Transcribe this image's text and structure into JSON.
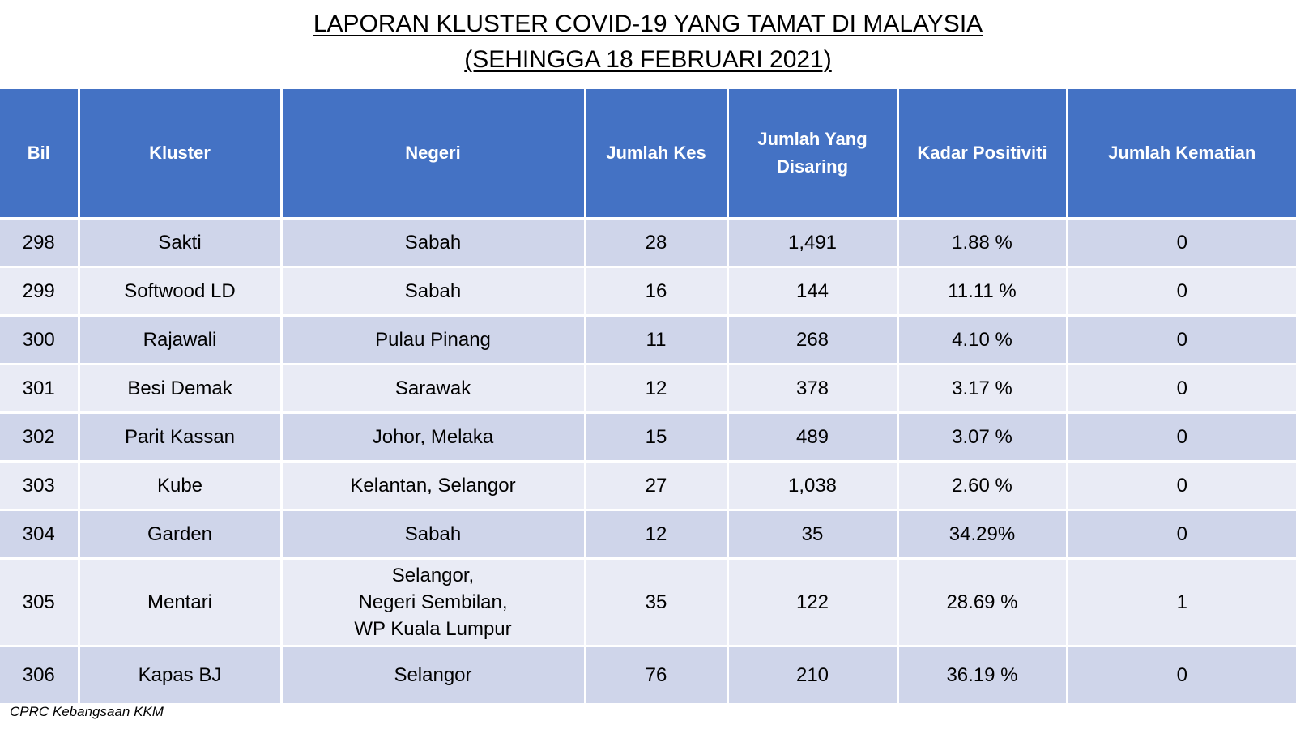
{
  "title": {
    "line1": "LAPORAN KLUSTER COVID-19 YANG TAMAT DI MALAYSIA",
    "line2": "(SEHINGGA 18 FEBRUARI 2021)"
  },
  "table": {
    "headers": {
      "bil": "Bil",
      "kluster": "Kluster",
      "negeri": "Negeri",
      "jumlah_kes": "Jumlah Kes",
      "jumlah_disaring": "Jumlah Yang Disaring",
      "kadar_positiviti": "Kadar Positiviti",
      "jumlah_kematian": "Jumlah Kematian"
    },
    "rows": [
      {
        "bil": "298",
        "kluster": "Sakti",
        "negeri": "Sabah",
        "jumlah_kes": "28",
        "jumlah_disaring": "1,491",
        "kadar_positiviti": "1.88 %",
        "jumlah_kematian": "0"
      },
      {
        "bil": "299",
        "kluster": "Softwood LD",
        "negeri": "Sabah",
        "jumlah_kes": "16",
        "jumlah_disaring": "144",
        "kadar_positiviti": "11.11 %",
        "jumlah_kematian": "0"
      },
      {
        "bil": "300",
        "kluster": "Rajawali",
        "negeri": "Pulau Pinang",
        "jumlah_kes": "11",
        "jumlah_disaring": "268",
        "kadar_positiviti": "4.10 %",
        "jumlah_kematian": "0"
      },
      {
        "bil": "301",
        "kluster": "Besi Demak",
        "negeri": "Sarawak",
        "jumlah_kes": "12",
        "jumlah_disaring": "378",
        "kadar_positiviti": "3.17 %",
        "jumlah_kematian": "0"
      },
      {
        "bil": "302",
        "kluster": "Parit Kassan",
        "negeri": "Johor, Melaka",
        "jumlah_kes": "15",
        "jumlah_disaring": "489",
        "kadar_positiviti": "3.07 %",
        "jumlah_kematian": "0"
      },
      {
        "bil": "303",
        "kluster": "Kube",
        "negeri": "Kelantan, Selangor",
        "jumlah_kes": "27",
        "jumlah_disaring": "1,038",
        "kadar_positiviti": "2.60 %",
        "jumlah_kematian": "0"
      },
      {
        "bil": "304",
        "kluster": "Garden",
        "negeri": "Sabah",
        "jumlah_kes": "12",
        "jumlah_disaring": "35",
        "kadar_positiviti": "34.29%",
        "jumlah_kematian": "0"
      },
      {
        "bil": "305",
        "kluster": "Mentari",
        "negeri": "Selangor,\nNegeri Sembilan,\nWP Kuala Lumpur",
        "jumlah_kes": "35",
        "jumlah_disaring": "122",
        "kadar_positiviti": "28.69 %",
        "jumlah_kematian": "1"
      },
      {
        "bil": "306",
        "kluster": "Kapas BJ",
        "negeri": "Selangor",
        "jumlah_kes": "76",
        "jumlah_disaring": "210",
        "kadar_positiviti": "36.19 %",
        "jumlah_kematian": "0"
      }
    ]
  },
  "footer": {
    "source": "CPRC Kebangsaan KKM"
  },
  "colors": {
    "header_bg": "#4472C4",
    "header_text": "#FFFFFF",
    "row_odd_bg": "#CFD5EA",
    "row_even_bg": "#E9EBF5",
    "border": "#FFFFFF"
  }
}
